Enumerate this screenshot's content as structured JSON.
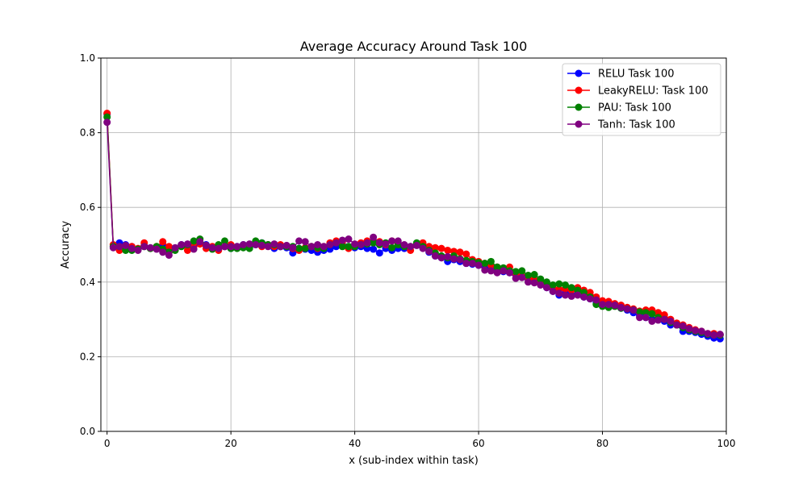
{
  "chart_data": {
    "type": "line",
    "title": "Average Accuracy Around Task 100",
    "xlabel": "x (sub-index within task)",
    "ylabel": "Accuracy",
    "xlim": [
      -1,
      100
    ],
    "ylim": [
      0.0,
      1.0
    ],
    "xticks": [
      0,
      20,
      40,
      60,
      80,
      100
    ],
    "yticks": [
      0.0,
      0.2,
      0.4,
      0.6,
      0.8,
      1.0
    ],
    "xtick_labels": [
      "0",
      "20",
      "40",
      "60",
      "80",
      "100"
    ],
    "ytick_labels": [
      "0.0",
      "0.2",
      "0.4",
      "0.6",
      "0.8",
      "1.0"
    ],
    "grid": true,
    "legend_position": "top-right",
    "x": [
      0,
      1,
      2,
      3,
      4,
      5,
      6,
      7,
      8,
      9,
      10,
      11,
      12,
      13,
      14,
      15,
      16,
      17,
      18,
      19,
      20,
      21,
      22,
      23,
      24,
      25,
      26,
      27,
      28,
      29,
      30,
      31,
      32,
      33,
      34,
      35,
      36,
      37,
      38,
      39,
      40,
      41,
      42,
      43,
      44,
      45,
      46,
      47,
      48,
      49,
      50,
      51,
      52,
      53,
      54,
      55,
      56,
      57,
      58,
      59,
      60,
      61,
      62,
      63,
      64,
      65,
      66,
      67,
      68,
      69,
      70,
      71,
      72,
      73,
      74,
      75,
      76,
      77,
      78,
      79,
      80,
      81,
      82,
      83,
      84,
      85,
      86,
      87,
      88,
      89,
      90,
      91,
      92,
      93,
      94,
      95,
      96,
      97,
      98,
      99
    ],
    "series": [
      {
        "name": "RELU Task 100",
        "color": "#0000ff",
        "values": [
          0.85,
          0.495,
          0.505,
          0.5,
          0.495,
          0.488,
          0.498,
          0.49,
          0.492,
          0.495,
          0.485,
          0.49,
          0.5,
          0.495,
          0.5,
          0.505,
          0.5,
          0.492,
          0.488,
          0.495,
          0.49,
          0.495,
          0.5,
          0.495,
          0.5,
          0.505,
          0.5,
          0.49,
          0.495,
          0.492,
          0.478,
          0.49,
          0.488,
          0.485,
          0.48,
          0.485,
          0.488,
          0.495,
          0.5,
          0.495,
          0.492,
          0.495,
          0.49,
          0.488,
          0.478,
          0.49,
          0.485,
          0.49,
          0.49,
          0.495,
          0.5,
          0.495,
          0.48,
          0.47,
          0.465,
          0.455,
          0.46,
          0.455,
          0.45,
          0.448,
          0.445,
          0.44,
          0.435,
          0.432,
          0.428,
          0.425,
          0.42,
          0.415,
          0.41,
          0.4,
          0.395,
          0.385,
          0.375,
          0.365,
          0.37,
          0.365,
          0.368,
          0.36,
          0.355,
          0.345,
          0.34,
          0.335,
          0.34,
          0.33,
          0.325,
          0.318,
          0.31,
          0.305,
          0.3,
          0.3,
          0.295,
          0.285,
          0.285,
          0.268,
          0.268,
          0.265,
          0.26,
          0.255,
          0.25,
          0.248
        ]
      },
      {
        "name": "LeakyRELU: Task 100",
        "color": "#ff0000",
        "values": [
          0.852,
          0.5,
          0.485,
          0.49,
          0.495,
          0.49,
          0.505,
          0.49,
          0.495,
          0.508,
          0.495,
          0.49,
          0.498,
          0.485,
          0.495,
          0.502,
          0.49,
          0.495,
          0.485,
          0.495,
          0.5,
          0.492,
          0.498,
          0.5,
          0.502,
          0.495,
          0.5,
          0.495,
          0.5,
          0.495,
          0.49,
          0.485,
          0.492,
          0.495,
          0.49,
          0.495,
          0.505,
          0.51,
          0.508,
          0.49,
          0.5,
          0.505,
          0.51,
          0.505,
          0.508,
          0.5,
          0.51,
          0.5,
          0.498,
          0.485,
          0.5,
          0.505,
          0.495,
          0.492,
          0.49,
          0.485,
          0.482,
          0.48,
          0.475,
          0.46,
          0.455,
          0.45,
          0.445,
          0.44,
          0.435,
          0.44,
          0.425,
          0.415,
          0.412,
          0.405,
          0.398,
          0.392,
          0.385,
          0.38,
          0.382,
          0.378,
          0.385,
          0.378,
          0.372,
          0.36,
          0.35,
          0.348,
          0.342,
          0.338,
          0.332,
          0.328,
          0.322,
          0.325,
          0.325,
          0.318,
          0.312,
          0.3,
          0.29,
          0.285,
          0.278,
          0.272,
          0.268,
          0.262,
          0.262,
          0.258
        ]
      },
      {
        "name": "PAU: Task 100",
        "color": "#008000",
        "values": [
          0.842,
          0.495,
          0.495,
          0.485,
          0.485,
          0.488,
          0.495,
          0.49,
          0.495,
          0.488,
          0.48,
          0.485,
          0.495,
          0.5,
          0.51,
          0.515,
          0.498,
          0.488,
          0.5,
          0.51,
          0.49,
          0.49,
          0.492,
          0.49,
          0.51,
          0.505,
          0.5,
          0.5,
          0.495,
          0.495,
          0.495,
          0.49,
          0.49,
          0.495,
          0.492,
          0.49,
          0.5,
          0.505,
          0.495,
          0.495,
          0.495,
          0.5,
          0.502,
          0.505,
          0.5,
          0.505,
          0.492,
          0.5,
          0.495,
          0.495,
          0.505,
          0.495,
          0.485,
          0.478,
          0.47,
          0.465,
          0.47,
          0.462,
          0.458,
          0.455,
          0.452,
          0.45,
          0.455,
          0.44,
          0.438,
          0.43,
          0.428,
          0.43,
          0.418,
          0.42,
          0.408,
          0.4,
          0.392,
          0.395,
          0.392,
          0.385,
          0.378,
          0.372,
          0.36,
          0.34,
          0.335,
          0.332,
          0.335,
          0.33,
          0.328,
          0.325,
          0.32,
          0.318,
          0.315,
          0.305,
          0.3,
          0.292,
          0.285,
          0.278,
          0.272,
          0.268,
          0.265,
          0.26,
          0.258,
          0.258
        ]
      },
      {
        "name": "Tanh: Task 100",
        "color": "#800080",
        "values": [
          0.828,
          0.492,
          0.495,
          0.498,
          0.49,
          0.485,
          0.495,
          0.492,
          0.488,
          0.48,
          0.472,
          0.492,
          0.5,
          0.502,
          0.488,
          0.508,
          0.498,
          0.492,
          0.49,
          0.495,
          0.495,
          0.495,
          0.5,
          0.502,
          0.5,
          0.498,
          0.495,
          0.502,
          0.495,
          0.498,
          0.492,
          0.51,
          0.508,
          0.495,
          0.5,
          0.495,
          0.5,
          0.505,
          0.512,
          0.515,
          0.502,
          0.5,
          0.505,
          0.52,
          0.505,
          0.502,
          0.51,
          0.51,
          0.5,
          0.495,
          0.498,
          0.49,
          0.482,
          0.47,
          0.465,
          0.468,
          0.462,
          0.46,
          0.45,
          0.45,
          0.445,
          0.432,
          0.43,
          0.425,
          0.43,
          0.425,
          0.41,
          0.412,
          0.4,
          0.398,
          0.392,
          0.385,
          0.375,
          0.37,
          0.365,
          0.362,
          0.365,
          0.36,
          0.355,
          0.352,
          0.34,
          0.34,
          0.338,
          0.332,
          0.328,
          0.325,
          0.305,
          0.305,
          0.295,
          0.298,
          0.3,
          0.295,
          0.285,
          0.282,
          0.275,
          0.27,
          0.268,
          0.262,
          0.258,
          0.26
        ]
      }
    ]
  }
}
